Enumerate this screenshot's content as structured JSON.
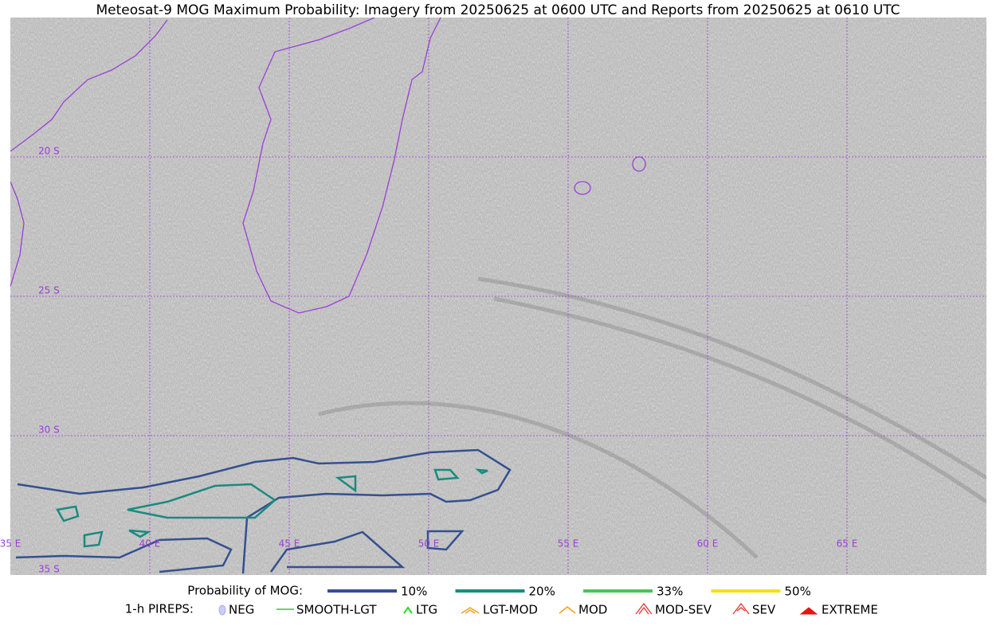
{
  "title": "Meteosat-9 MOG Maximum Probability: Imagery from 20250625 at 0600 UTC and Reports from 20250625 at 0610 UTC",
  "map": {
    "lat_labels": [
      "20 S",
      "25 S",
      "30 S",
      "35 S"
    ],
    "lon_labels": [
      "35 E",
      "40 E",
      "45 E",
      "50 E",
      "55 E",
      "60 E",
      "65 E"
    ]
  },
  "legend": {
    "probability": {
      "title": "Probability of MOG:",
      "items": [
        {
          "label": "10%",
          "color": "#34508f"
        },
        {
          "label": "20%",
          "color": "#1b8a80"
        },
        {
          "label": "33%",
          "color": "#4dc35a"
        },
        {
          "label": "50%",
          "color": "#f5e017"
        }
      ]
    },
    "pireps": {
      "title": "1-h PIREPS:",
      "items": [
        "NEG",
        "SMOOTH-LGT",
        "LTG",
        "LGT-MOD",
        "MOD",
        "MOD-SEV",
        "SEV",
        "EXTREME"
      ]
    }
  }
}
